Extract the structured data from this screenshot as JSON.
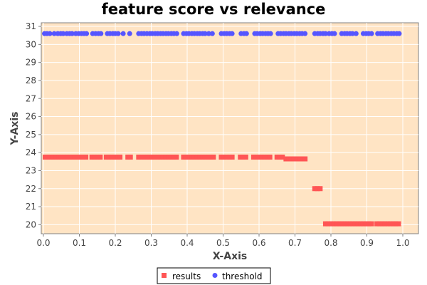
{
  "chart_data": {
    "type": "scatter",
    "title": "feature score vs relevance",
    "xlabel": "X-Axis",
    "ylabel": "Y-Axis",
    "xlim": [
      0.0,
      1.0
    ],
    "ylim": [
      19.5,
      31.2
    ],
    "xticks": [
      "0.0",
      "0.1",
      "0.2",
      "0.3",
      "0.4",
      "0.5",
      "0.6",
      "0.7",
      "0.8",
      "0.9",
      "1.0"
    ],
    "yticks": [
      "20",
      "21",
      "22",
      "23",
      "24",
      "25",
      "26",
      "27",
      "28",
      "29",
      "30",
      "31"
    ],
    "grid": true,
    "legend_position": "bottom-center",
    "background_color": "#ffe4c4",
    "series": [
      {
        "name": "results",
        "marker": "square",
        "color": "#ff5555",
        "points": [
          [
            0.005,
            23.75
          ],
          [
            0.012,
            23.75
          ],
          [
            0.02,
            23.75
          ],
          [
            0.028,
            23.75
          ],
          [
            0.035,
            23.75
          ],
          [
            0.043,
            23.75
          ],
          [
            0.05,
            23.75
          ],
          [
            0.058,
            23.75
          ],
          [
            0.065,
            23.75
          ],
          [
            0.073,
            23.75
          ],
          [
            0.08,
            23.75
          ],
          [
            0.088,
            23.75
          ],
          [
            0.095,
            23.75
          ],
          [
            0.103,
            23.75
          ],
          [
            0.11,
            23.75
          ],
          [
            0.118,
            23.75
          ],
          [
            0.135,
            23.75
          ],
          [
            0.142,
            23.75
          ],
          [
            0.15,
            23.75
          ],
          [
            0.158,
            23.75
          ],
          [
            0.175,
            23.75
          ],
          [
            0.182,
            23.75
          ],
          [
            0.19,
            23.75
          ],
          [
            0.198,
            23.75
          ],
          [
            0.205,
            23.75
          ],
          [
            0.213,
            23.75
          ],
          [
            0.235,
            23.75
          ],
          [
            0.242,
            23.75
          ],
          [
            0.265,
            23.75
          ],
          [
            0.272,
            23.75
          ],
          [
            0.28,
            23.75
          ],
          [
            0.288,
            23.75
          ],
          [
            0.295,
            23.75
          ],
          [
            0.303,
            23.75
          ],
          [
            0.31,
            23.75
          ],
          [
            0.318,
            23.75
          ],
          [
            0.325,
            23.75
          ],
          [
            0.333,
            23.75
          ],
          [
            0.34,
            23.75
          ],
          [
            0.348,
            23.75
          ],
          [
            0.355,
            23.75
          ],
          [
            0.363,
            23.75
          ],
          [
            0.37,
            23.75
          ],
          [
            0.39,
            23.75
          ],
          [
            0.397,
            23.75
          ],
          [
            0.405,
            23.75
          ],
          [
            0.413,
            23.75
          ],
          [
            0.42,
            23.75
          ],
          [
            0.428,
            23.75
          ],
          [
            0.435,
            23.75
          ],
          [
            0.443,
            23.75
          ],
          [
            0.45,
            23.75
          ],
          [
            0.458,
            23.75
          ],
          [
            0.465,
            23.75
          ],
          [
            0.473,
            23.75
          ],
          [
            0.495,
            23.75
          ],
          [
            0.502,
            23.75
          ],
          [
            0.51,
            23.75
          ],
          [
            0.518,
            23.75
          ],
          [
            0.525,
            23.75
          ],
          [
            0.548,
            23.75
          ],
          [
            0.555,
            23.75
          ],
          [
            0.563,
            23.75
          ],
          [
            0.585,
            23.75
          ],
          [
            0.592,
            23.75
          ],
          [
            0.6,
            23.75
          ],
          [
            0.608,
            23.75
          ],
          [
            0.615,
            23.75
          ],
          [
            0.623,
            23.75
          ],
          [
            0.63,
            23.75
          ],
          [
            0.65,
            23.75
          ],
          [
            0.657,
            23.75
          ],
          [
            0.665,
            23.75
          ],
          [
            0.675,
            23.65
          ],
          [
            0.683,
            23.65
          ],
          [
            0.69,
            23.65
          ],
          [
            0.698,
            23.65
          ],
          [
            0.705,
            23.65
          ],
          [
            0.713,
            23.65
          ],
          [
            0.72,
            23.65
          ],
          [
            0.728,
            23.65
          ],
          [
            0.755,
            22.0
          ],
          [
            0.762,
            22.0
          ],
          [
            0.77,
            22.0
          ],
          [
            0.785,
            20.05
          ],
          [
            0.792,
            20.05
          ],
          [
            0.8,
            20.05
          ],
          [
            0.808,
            20.05
          ],
          [
            0.815,
            20.05
          ],
          [
            0.823,
            20.05
          ],
          [
            0.83,
            20.05
          ],
          [
            0.838,
            20.05
          ],
          [
            0.845,
            20.05
          ],
          [
            0.853,
            20.05
          ],
          [
            0.86,
            20.05
          ],
          [
            0.868,
            20.05
          ],
          [
            0.875,
            20.05
          ],
          [
            0.883,
            20.05
          ],
          [
            0.89,
            20.05
          ],
          [
            0.898,
            20.05
          ],
          [
            0.905,
            20.05
          ],
          [
            0.913,
            20.05
          ],
          [
            0.928,
            20.05
          ],
          [
            0.935,
            20.05
          ],
          [
            0.943,
            20.05
          ],
          [
            0.95,
            20.05
          ],
          [
            0.958,
            20.05
          ],
          [
            0.965,
            20.05
          ],
          [
            0.973,
            20.05
          ],
          [
            0.98,
            20.05
          ],
          [
            0.988,
            20.05
          ]
        ]
      },
      {
        "name": "threshold",
        "marker": "circle",
        "color": "#5555ff",
        "points": [
          [
            0.003,
            30.6
          ],
          [
            0.01,
            30.6
          ],
          [
            0.018,
            30.6
          ],
          [
            0.03,
            30.6
          ],
          [
            0.04,
            30.6
          ],
          [
            0.048,
            30.6
          ],
          [
            0.055,
            30.6
          ],
          [
            0.065,
            30.6
          ],
          [
            0.073,
            30.6
          ],
          [
            0.08,
            30.6
          ],
          [
            0.09,
            30.6
          ],
          [
            0.098,
            30.6
          ],
          [
            0.106,
            30.6
          ],
          [
            0.113,
            30.6
          ],
          [
            0.12,
            30.6
          ],
          [
            0.137,
            30.6
          ],
          [
            0.145,
            30.6
          ],
          [
            0.153,
            30.6
          ],
          [
            0.16,
            30.6
          ],
          [
            0.178,
            30.6
          ],
          [
            0.185,
            30.6
          ],
          [
            0.193,
            30.6
          ],
          [
            0.2,
            30.6
          ],
          [
            0.208,
            30.6
          ],
          [
            0.222,
            30.6
          ],
          [
            0.24,
            30.6
          ],
          [
            0.265,
            30.6
          ],
          [
            0.273,
            30.6
          ],
          [
            0.28,
            30.6
          ],
          [
            0.288,
            30.6
          ],
          [
            0.296,
            30.6
          ],
          [
            0.303,
            30.6
          ],
          [
            0.311,
            30.6
          ],
          [
            0.318,
            30.6
          ],
          [
            0.326,
            30.6
          ],
          [
            0.333,
            30.6
          ],
          [
            0.341,
            30.6
          ],
          [
            0.348,
            30.6
          ],
          [
            0.356,
            30.6
          ],
          [
            0.363,
            30.6
          ],
          [
            0.371,
            30.6
          ],
          [
            0.39,
            30.6
          ],
          [
            0.398,
            30.6
          ],
          [
            0.405,
            30.6
          ],
          [
            0.413,
            30.6
          ],
          [
            0.42,
            30.6
          ],
          [
            0.428,
            30.6
          ],
          [
            0.435,
            30.6
          ],
          [
            0.443,
            30.6
          ],
          [
            0.45,
            30.6
          ],
          [
            0.46,
            30.6
          ],
          [
            0.47,
            30.6
          ],
          [
            0.495,
            30.6
          ],
          [
            0.503,
            30.6
          ],
          [
            0.51,
            30.6
          ],
          [
            0.518,
            30.6
          ],
          [
            0.525,
            30.6
          ],
          [
            0.55,
            30.6
          ],
          [
            0.558,
            30.6
          ],
          [
            0.565,
            30.6
          ],
          [
            0.588,
            30.6
          ],
          [
            0.595,
            30.6
          ],
          [
            0.603,
            30.6
          ],
          [
            0.61,
            30.6
          ],
          [
            0.618,
            30.6
          ],
          [
            0.625,
            30.6
          ],
          [
            0.632,
            30.6
          ],
          [
            0.653,
            30.6
          ],
          [
            0.66,
            30.6
          ],
          [
            0.668,
            30.6
          ],
          [
            0.675,
            30.6
          ],
          [
            0.683,
            30.6
          ],
          [
            0.69,
            30.6
          ],
          [
            0.698,
            30.6
          ],
          [
            0.705,
            30.6
          ],
          [
            0.713,
            30.6
          ],
          [
            0.72,
            30.6
          ],
          [
            0.728,
            30.6
          ],
          [
            0.755,
            30.6
          ],
          [
            0.763,
            30.6
          ],
          [
            0.77,
            30.6
          ],
          [
            0.778,
            30.6
          ],
          [
            0.785,
            30.6
          ],
          [
            0.795,
            30.6
          ],
          [
            0.803,
            30.6
          ],
          [
            0.81,
            30.6
          ],
          [
            0.83,
            30.6
          ],
          [
            0.838,
            30.6
          ],
          [
            0.845,
            30.6
          ],
          [
            0.853,
            30.6
          ],
          [
            0.86,
            30.6
          ],
          [
            0.87,
            30.6
          ],
          [
            0.89,
            30.6
          ],
          [
            0.898,
            30.6
          ],
          [
            0.905,
            30.6
          ],
          [
            0.913,
            30.6
          ],
          [
            0.93,
            30.6
          ],
          [
            0.938,
            30.6
          ],
          [
            0.945,
            30.6
          ],
          [
            0.953,
            30.6
          ],
          [
            0.96,
            30.6
          ],
          [
            0.968,
            30.6
          ],
          [
            0.975,
            30.6
          ],
          [
            0.983,
            30.6
          ],
          [
            0.99,
            30.6
          ]
        ]
      }
    ]
  }
}
